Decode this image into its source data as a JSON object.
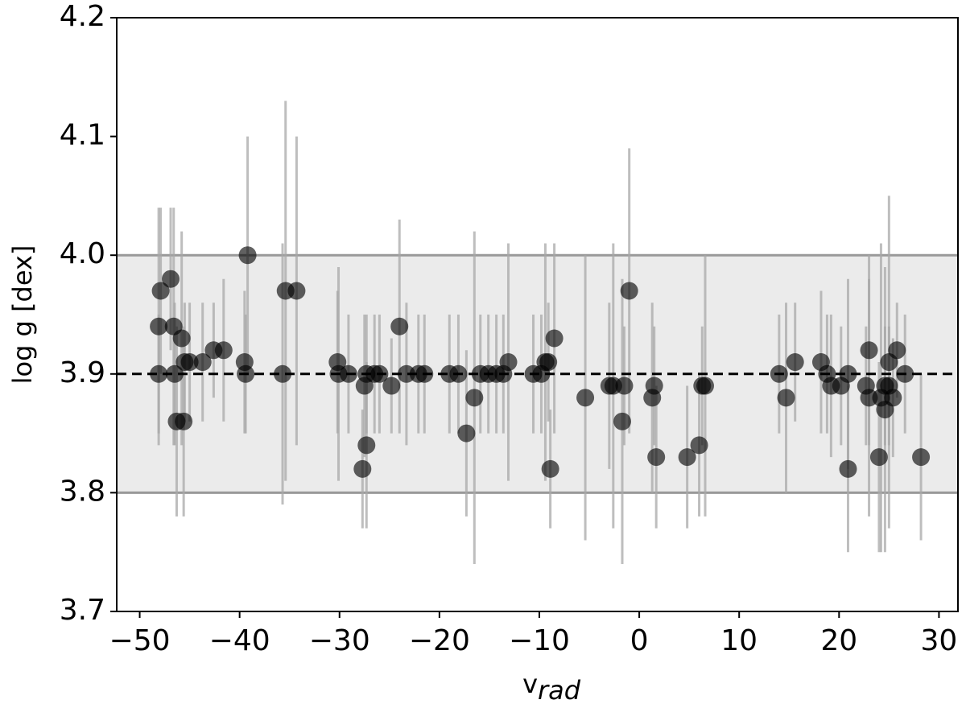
{
  "chart_data": {
    "type": "scatter",
    "ylabel": "log g [dex]",
    "xlabel": "v",
    "xlabel_sub": "rad",
    "xlim": [
      -52.3,
      31.9
    ],
    "ylim": [
      3.7,
      4.2
    ],
    "xticks": [
      {
        "value": -50,
        "label": "−50"
      },
      {
        "value": -40,
        "label": "−40"
      },
      {
        "value": -30,
        "label": "−30"
      },
      {
        "value": -20,
        "label": "−20"
      },
      {
        "value": -10,
        "label": "−10"
      },
      0,
      10,
      20,
      30
    ],
    "yticks": [
      3.7,
      3.8,
      3.9,
      {
        "value": 4,
        "label": "4.0"
      },
      4.1,
      4.2
    ],
    "band": [
      3.8,
      4.0
    ],
    "band_color": "#ebebeb",
    "band_edge_color": "#999999",
    "hline": 3.9,
    "hline_color": "#000000",
    "series": [
      {
        "color": "#000000",
        "error_color": "#a8a8a8",
        "x": [
          -48.1,
          -47.9,
          -48.1,
          -46.9,
          -46.6,
          -46.5,
          -46.3,
          -45.8,
          -45.6,
          -45.5,
          -45.0,
          -43.7,
          -42.6,
          -41.6,
          -39.5,
          -39.4,
          -39.2,
          -35.7,
          -35.4,
          -34.3,
          -30.2,
          -30.1,
          -29.1,
          -27.7,
          -27.5,
          -27.3,
          -27.3,
          -26.5,
          -26.0,
          -24.8,
          -24.0,
          -23.3,
          -22.1,
          -21.5,
          -19.0,
          -18.1,
          -17.3,
          -16.5,
          -15.9,
          -15.1,
          -14.3,
          -13.6,
          -13.1,
          -10.6,
          -9.8,
          -9.4,
          -9.1,
          -8.9,
          -8.5,
          -5.4,
          -3.0,
          -2.6,
          -1.7,
          -1.5,
          -1.0,
          1.3,
          1.5,
          1.7,
          4.8,
          6.0,
          6.3,
          6.6,
          14.0,
          14.7,
          15.6,
          18.2,
          18.8,
          19.2,
          20.2,
          20.9,
          20.9,
          22.7,
          23.0,
          23.0,
          24.0,
          24.2,
          24.6,
          24.6,
          25.0,
          25.0,
          25.4,
          25.8,
          26.6,
          28.2
        ],
        "values": [
          3.94,
          3.97,
          3.9,
          3.98,
          3.94,
          3.9,
          3.86,
          3.93,
          3.86,
          3.91,
          3.91,
          3.91,
          3.92,
          3.92,
          3.91,
          3.9,
          4.0,
          3.9,
          3.97,
          3.97,
          3.91,
          3.9,
          3.9,
          3.82,
          3.89,
          3.84,
          3.9,
          3.9,
          3.9,
          3.89,
          3.94,
          3.9,
          3.9,
          3.9,
          3.9,
          3.9,
          3.85,
          3.88,
          3.9,
          3.9,
          3.9,
          3.9,
          3.91,
          3.9,
          3.9,
          3.91,
          3.91,
          3.82,
          3.93,
          3.88,
          3.89,
          3.89,
          3.86,
          3.89,
          3.97,
          3.88,
          3.89,
          3.83,
          3.83,
          3.84,
          3.89,
          3.89,
          3.9,
          3.88,
          3.91,
          3.91,
          3.9,
          3.89,
          3.89,
          3.9,
          3.82,
          3.89,
          3.92,
          3.88,
          3.83,
          3.88,
          3.87,
          3.89,
          3.91,
          3.89,
          3.88,
          3.92,
          3.9,
          3.83
        ],
        "yerr": [
          0.1,
          0.07,
          0.05,
          0.06,
          0.1,
          0.06,
          0.08,
          0.09,
          0.08,
          0.05,
          0.05,
          0.05,
          0.04,
          0.06,
          0.06,
          0.05,
          0.1,
          0.11,
          0.16,
          0.13,
          0.06,
          0.09,
          0.05,
          0.05,
          0.06,
          0.07,
          0.05,
          0.05,
          0.05,
          0.04,
          0.09,
          0.06,
          0.05,
          0.05,
          0.05,
          0.05,
          0.07,
          0.14,
          0.05,
          0.05,
          0.05,
          0.05,
          0.1,
          0.05,
          0.05,
          0.1,
          0.05,
          0.05,
          0.08,
          0.12,
          0.07,
          0.12,
          0.12,
          0.05,
          0.12,
          0.08,
          0.05,
          0.06,
          0.06,
          0.06,
          0.05,
          0.11,
          0.05,
          0.08,
          0.05,
          0.06,
          0.05,
          0.06,
          0.05,
          0.08,
          0.07,
          0.05,
          0.08,
          0.1,
          0.08,
          0.13,
          0.12,
          0.05,
          0.14,
          0.05,
          0.05,
          0.04,
          0.05,
          0.07
        ]
      }
    ]
  }
}
